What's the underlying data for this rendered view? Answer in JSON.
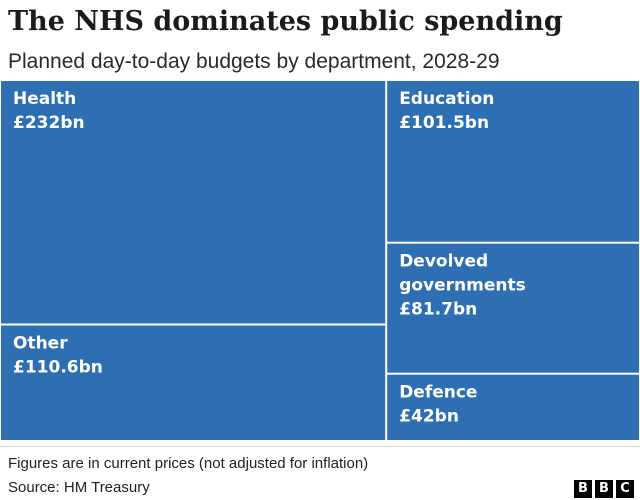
{
  "chart_data": {
    "type": "treemap",
    "title": "The NHS dominates public spending",
    "subtitle": "Planned day-to-day budgets by department, 2028-29",
    "unit": "£bn",
    "color": "#2e6fb4",
    "tiles": [
      {
        "name": "Health",
        "value": 232,
        "label_lines": [
          "Health",
          "£232bn"
        ]
      },
      {
        "name": "Other",
        "value": 110.6,
        "label_lines": [
          "Other",
          "£110.6bn"
        ]
      },
      {
        "name": "Education",
        "value": 101.5,
        "label_lines": [
          "Education",
          "£101.5bn"
        ]
      },
      {
        "name": "Devolved governments",
        "value": 81.7,
        "label_lines": [
          "Devolved",
          "governments",
          "£81.7bn"
        ]
      },
      {
        "name": "Defence",
        "value": 42,
        "label_lines": [
          "Defence",
          "£42bn"
        ]
      }
    ]
  },
  "footer": {
    "note": "Figures are in current prices (not adjusted for inflation)",
    "source": "Source: HM Treasury",
    "logo_letters": [
      "B",
      "B",
      "C"
    ]
  }
}
